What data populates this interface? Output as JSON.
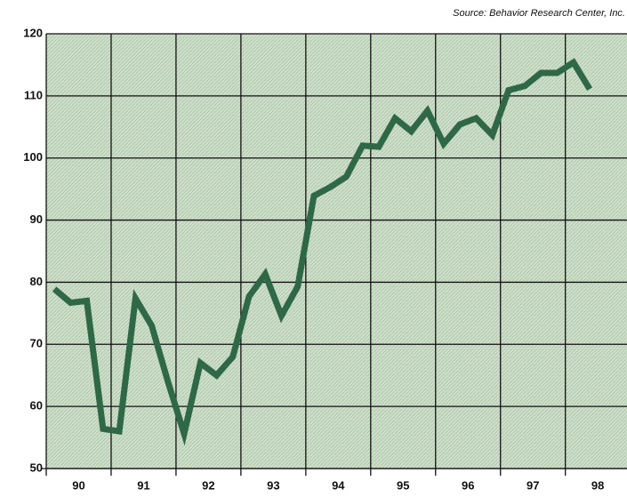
{
  "chart_data": {
    "type": "line",
    "source": "Source: Behavior Research Center, Inc.",
    "x": [
      1990.125,
      1990.375,
      1990.625,
      1990.875,
      1991.125,
      1991.375,
      1991.625,
      1991.875,
      1992.125,
      1992.375,
      1992.625,
      1992.875,
      1993.125,
      1993.375,
      1993.625,
      1993.875,
      1994.125,
      1994.375,
      1994.625,
      1994.875,
      1995.125,
      1995.375,
      1995.625,
      1995.875,
      1996.125,
      1996.375,
      1996.625,
      1996.875,
      1997.125,
      1997.375,
      1997.625,
      1997.875,
      1998.125,
      1998.375
    ],
    "series": [
      {
        "color": "#2f6846",
        "values": [
          78.9,
          76.7,
          77,
          56.4,
          56,
          77.4,
          73,
          64,
          55.6,
          67,
          65,
          68,
          77.7,
          81.3,
          74.6,
          79.3,
          93.9,
          95.3,
          97,
          102,
          101.8,
          106.4,
          104.3,
          107.6,
          102.3,
          105.4,
          106.4,
          103.7,
          110.9,
          111.6,
          113.7,
          113.7,
          115.4,
          111.1
        ]
      }
    ],
    "xlim": [
      1990,
      1998.95
    ],
    "xticks": [
      {
        "value": 1990.5,
        "label": "90"
      },
      {
        "value": 1991.5,
        "label": "91"
      },
      {
        "value": 1992.5,
        "label": "92"
      },
      {
        "value": 1993.5,
        "label": "93"
      },
      {
        "value": 1994.5,
        "label": "94"
      },
      {
        "value": 1995.5,
        "label": "95"
      },
      {
        "value": 1996.5,
        "label": "96"
      },
      {
        "value": 1997.5,
        "label": "97"
      },
      {
        "value": 1998.5,
        "label": "98"
      }
    ],
    "ylim": [
      50,
      120
    ],
    "yticks": [
      50,
      60,
      70,
      80,
      90,
      100,
      110,
      120
    ],
    "grid": true
  }
}
